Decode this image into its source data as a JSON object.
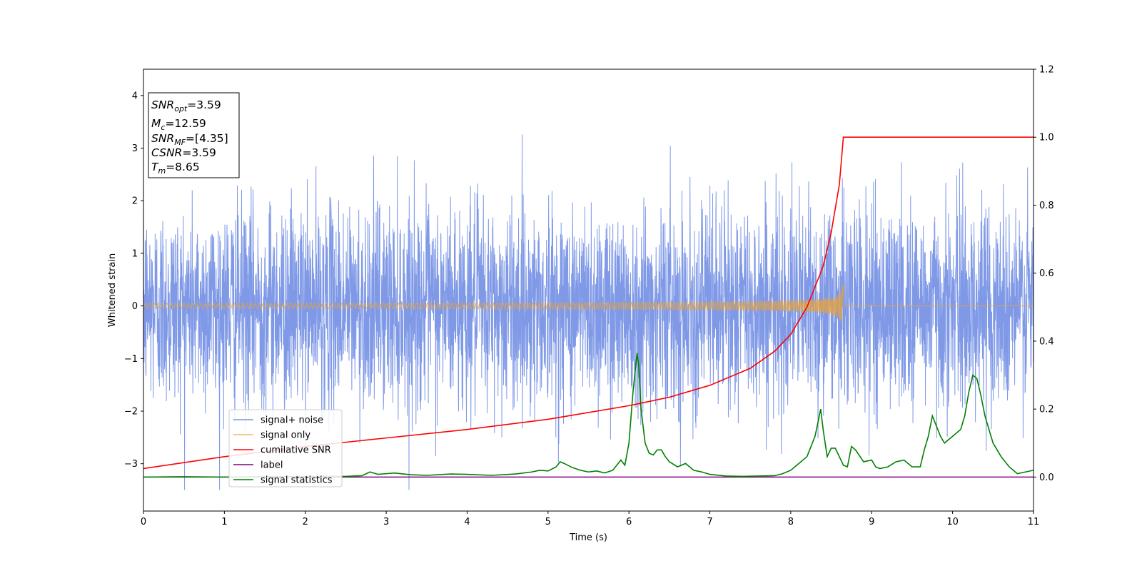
{
  "chart_data": {
    "type": "line",
    "xlabel": "Time (s)",
    "ylabel": "Whitened strain",
    "xlim": [
      0,
      11
    ],
    "ylim_left": [
      -3.9,
      4.5
    ],
    "ylim_right": [
      -0.1,
      1.2
    ],
    "x_ticks": [
      "0",
      "1",
      "2",
      "3",
      "4",
      "5",
      "6",
      "7",
      "8",
      "9",
      "10",
      "11"
    ],
    "y_ticks_left": [
      "−3",
      "−2",
      "−1",
      "0",
      "1",
      "2",
      "3",
      "4"
    ],
    "y_ticks_right": [
      "0.0",
      "0.2",
      "0.4",
      "0.6",
      "0.8",
      "1.0",
      "1.2"
    ],
    "legend_position": "lower-left",
    "annotation": {
      "snr_opt": {
        "base": "SNR",
        "sub": "opt",
        "value": "=3.59"
      },
      "mc": {
        "base": "M",
        "sub": "c",
        "value": "=12.59"
      },
      "snr_mf": {
        "base": "SNR",
        "sub": "MF",
        "value": "=[4.35]"
      },
      "csnr": {
        "base": "CSNR",
        "sub": "",
        "value": "=3.59"
      },
      "tm": {
        "base": "T",
        "sub": "m",
        "value": "=8.65"
      }
    },
    "series": [
      {
        "name": "signal+ noise",
        "color": "#7893e6",
        "axis": "left",
        "description_kind": "noise",
        "noise_std": 0.95,
        "envelope_max": 3.6,
        "envelope_min": -3.5
      },
      {
        "name": "signal only",
        "color": "#e8a33a",
        "axis": "left",
        "description_kind": "chirp",
        "merger_time": 8.65,
        "peak_amplitude": 0.55
      },
      {
        "name": "cumilative SNR",
        "color": "#ff0000",
        "axis": "right",
        "x": [
          0,
          1,
          2,
          3,
          4,
          5,
          5.5,
          6,
          6.5,
          7,
          7.5,
          7.8,
          8.0,
          8.2,
          8.4,
          8.5,
          8.6,
          8.65,
          11
        ],
        "y": [
          0.025,
          0.06,
          0.09,
          0.115,
          0.14,
          0.17,
          0.19,
          0.21,
          0.235,
          0.27,
          0.32,
          0.37,
          0.42,
          0.5,
          0.62,
          0.72,
          0.86,
          1.0,
          1.0
        ]
      },
      {
        "name": "label",
        "color": "#800080",
        "axis": "right",
        "x": [
          0,
          11
        ],
        "y": [
          0.0,
          0.0
        ]
      },
      {
        "name": "signal statistics",
        "color": "#008000",
        "axis": "right",
        "x": [
          0,
          0.5,
          1,
          1.5,
          2,
          2.5,
          2.7,
          2.8,
          2.9,
          3.0,
          3.1,
          3.3,
          3.5,
          3.8,
          4.0,
          4.3,
          4.6,
          4.8,
          4.9,
          5.0,
          5.1,
          5.15,
          5.2,
          5.3,
          5.4,
          5.5,
          5.6,
          5.7,
          5.8,
          5.9,
          5.95,
          6.0,
          6.05,
          6.1,
          6.12,
          6.15,
          6.2,
          6.25,
          6.3,
          6.35,
          6.4,
          6.45,
          6.5,
          6.6,
          6.7,
          6.8,
          6.9,
          7.0,
          7.2,
          7.4,
          7.6,
          7.8,
          7.9,
          8.0,
          8.1,
          8.2,
          8.3,
          8.37,
          8.4,
          8.45,
          8.5,
          8.55,
          8.6,
          8.65,
          8.7,
          8.75,
          8.8,
          8.9,
          9.0,
          9.05,
          9.1,
          9.2,
          9.3,
          9.4,
          9.45,
          9.5,
          9.6,
          9.65,
          9.7,
          9.75,
          9.8,
          9.85,
          9.9,
          10.0,
          10.1,
          10.15,
          10.2,
          10.25,
          10.3,
          10.35,
          10.4,
          10.5,
          10.6,
          10.7,
          10.8,
          10.9,
          11.0
        ],
        "y": [
          0.0,
          0.001,
          0.0,
          0.001,
          0.002,
          0.002,
          0.004,
          0.015,
          0.008,
          0.01,
          0.012,
          0.007,
          0.005,
          0.009,
          0.008,
          0.005,
          0.009,
          0.015,
          0.02,
          0.018,
          0.03,
          0.045,
          0.04,
          0.028,
          0.02,
          0.015,
          0.018,
          0.012,
          0.02,
          0.05,
          0.035,
          0.1,
          0.25,
          0.365,
          0.33,
          0.2,
          0.1,
          0.07,
          0.065,
          0.08,
          0.08,
          0.06,
          0.045,
          0.03,
          0.04,
          0.02,
          0.015,
          0.008,
          0.003,
          0.002,
          0.003,
          0.004,
          0.01,
          0.02,
          0.04,
          0.06,
          0.12,
          0.2,
          0.14,
          0.06,
          0.085,
          0.085,
          0.06,
          0.035,
          0.03,
          0.09,
          0.08,
          0.045,
          0.05,
          0.03,
          0.025,
          0.03,
          0.045,
          0.05,
          0.04,
          0.03,
          0.03,
          0.08,
          0.12,
          0.18,
          0.15,
          0.12,
          0.1,
          0.12,
          0.14,
          0.18,
          0.25,
          0.3,
          0.29,
          0.24,
          0.18,
          0.1,
          0.06,
          0.03,
          0.01,
          0.015,
          0.02
        ]
      }
    ]
  }
}
